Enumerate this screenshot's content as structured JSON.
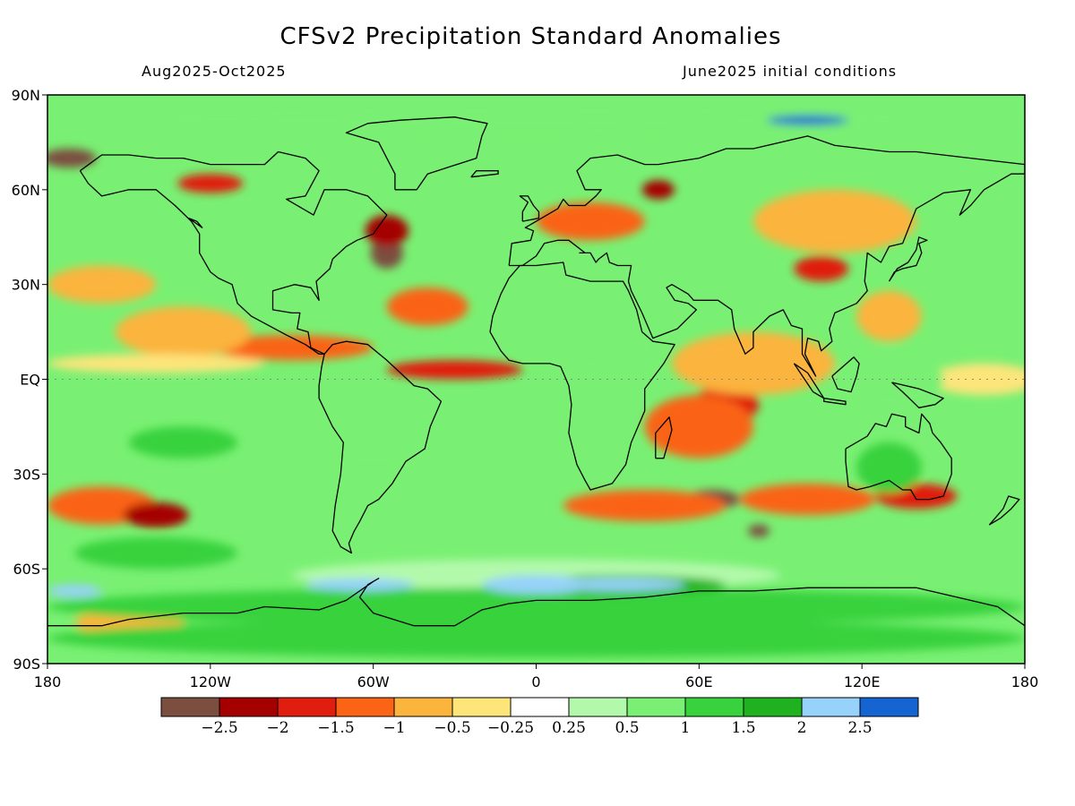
{
  "title": "CFSv2 Precipitation Standard Anomalies",
  "subtitle_left": "Aug2025-Oct2025",
  "subtitle_right": "June2025 initial conditions",
  "map": {
    "projection": "lat-lon",
    "lon_range": [
      -180,
      180
    ],
    "lat_range": [
      -90,
      90
    ],
    "coastlines": true,
    "gridlines": "dotted at EQ"
  },
  "y_ticks": [
    {
      "lat": 90,
      "label": "90N"
    },
    {
      "lat": 60,
      "label": "60N"
    },
    {
      "lat": 30,
      "label": "30N"
    },
    {
      "lat": 0,
      "label": "EQ"
    },
    {
      "lat": -30,
      "label": "30S"
    },
    {
      "lat": -60,
      "label": "60S"
    },
    {
      "lat": -90,
      "label": "90S"
    }
  ],
  "x_ticks": [
    {
      "lon": -180,
      "label": "180"
    },
    {
      "lon": -120,
      "label": "120W"
    },
    {
      "lon": -60,
      "label": "60W"
    },
    {
      "lon": 0,
      "label": "0"
    },
    {
      "lon": 60,
      "label": "60E"
    },
    {
      "lon": 120,
      "label": "120E"
    },
    {
      "lon": 180,
      "label": "180"
    }
  ],
  "colorbar": {
    "colors": [
      "#7b4e40",
      "#a50000",
      "#e01e0f",
      "#fa6414",
      "#fbb43c",
      "#fde57a",
      "#ffffff",
      "#b3f9ab",
      "#79f073",
      "#37d23c",
      "#20b21e",
      "#96d2fa",
      "#1464d2"
    ],
    "labels": [
      "-2.5",
      "-2",
      "-1.5",
      "-1",
      "-0.5",
      "-0.25",
      "0.25",
      "0.5",
      "1",
      "1.5",
      "2",
      "2.5"
    ]
  },
  "anomaly_regions": [
    {
      "lon": -172,
      "lat": 70,
      "rx": 10,
      "ry": 3,
      "level": 0
    },
    {
      "lon": -55,
      "lat": 40,
      "rx": 6,
      "ry": 5,
      "level": 0
    },
    {
      "lon": 65,
      "lat": -38,
      "rx": 10,
      "ry": 3,
      "level": 0
    },
    {
      "lon": 82,
      "lat": -48,
      "rx": 4,
      "ry": 2,
      "level": 0
    },
    {
      "lon": 45,
      "lat": 60,
      "rx": 6,
      "ry": 3,
      "level": 1
    },
    {
      "lon": -55,
      "lat": 47,
      "rx": 8,
      "ry": 5,
      "level": 1
    },
    {
      "lon": -30,
      "lat": 3,
      "rx": 25,
      "ry": 3,
      "level": 2
    },
    {
      "lon": 70,
      "lat": -8,
      "rx": 12,
      "ry": 6,
      "level": 2
    },
    {
      "lon": 105,
      "lat": 35,
      "rx": 10,
      "ry": 4,
      "level": 2
    },
    {
      "lon": 140,
      "lat": -37,
      "rx": 15,
      "ry": 4,
      "level": 2
    },
    {
      "lon": -120,
      "lat": 62,
      "rx": 12,
      "ry": 3,
      "level": 2
    },
    {
      "lon": -90,
      "lat": 10,
      "rx": 30,
      "ry": 4,
      "level": 3
    },
    {
      "lon": -40,
      "lat": 23,
      "rx": 15,
      "ry": 6,
      "level": 3
    },
    {
      "lon": 20,
      "lat": 50,
      "rx": 20,
      "ry": 6,
      "level": 3
    },
    {
      "lon": 60,
      "lat": -15,
      "rx": 20,
      "ry": 10,
      "level": 3
    },
    {
      "lon": 40,
      "lat": -40,
      "rx": 30,
      "ry": 5,
      "level": 3
    },
    {
      "lon": 100,
      "lat": -38,
      "rx": 25,
      "ry": 5,
      "level": 3
    },
    {
      "lon": -160,
      "lat": -40,
      "rx": 20,
      "ry": 6,
      "level": 3
    },
    {
      "lon": -160,
      "lat": 30,
      "rx": 20,
      "ry": 6,
      "level": 4
    },
    {
      "lon": -130,
      "lat": 15,
      "rx": 25,
      "ry": 8,
      "level": 4
    },
    {
      "lon": 80,
      "lat": 5,
      "rx": 30,
      "ry": 10,
      "level": 4
    },
    {
      "lon": 110,
      "lat": 50,
      "rx": 30,
      "ry": 10,
      "level": 4
    },
    {
      "lon": -150,
      "lat": -77,
      "rx": 20,
      "ry": 4,
      "level": 4
    },
    {
      "lon": 130,
      "lat": 20,
      "rx": 12,
      "ry": 8,
      "level": 4
    },
    {
      "lon": -140,
      "lat": 5,
      "rx": 40,
      "ry": 3,
      "level": 5
    },
    {
      "lon": 165,
      "lat": 0,
      "rx": 20,
      "ry": 5,
      "level": 5
    },
    {
      "lon": 0,
      "lat": -62,
      "rx": 90,
      "ry": 5,
      "level": 7
    },
    {
      "lon": -60,
      "lat": -30,
      "rx": 20,
      "ry": 8,
      "level": 8
    },
    {
      "lon": 20,
      "lat": 10,
      "rx": 25,
      "ry": 8,
      "level": 8
    },
    {
      "lon": 130,
      "lat": 0,
      "rx": 20,
      "ry": 10,
      "level": 8
    },
    {
      "lon": 0,
      "lat": 83,
      "rx": 180,
      "ry": 5,
      "level": 8
    },
    {
      "lon": 0,
      "lat": -72,
      "rx": 180,
      "ry": 6,
      "level": 9
    },
    {
      "lon": 0,
      "lat": -82,
      "rx": 180,
      "ry": 6,
      "level": 9
    },
    {
      "lon": -140,
      "lat": -55,
      "rx": 30,
      "ry": 5,
      "level": 9
    },
    {
      "lon": 130,
      "lat": -28,
      "rx": 12,
      "ry": 8,
      "level": 9
    },
    {
      "lon": -130,
      "lat": -20,
      "rx": 20,
      "ry": 5,
      "level": 9
    },
    {
      "lon": 30,
      "lat": -65,
      "rx": 40,
      "ry": 3,
      "level": 10
    },
    {
      "lon": 0,
      "lat": -65,
      "rx": 20,
      "ry": 3,
      "level": 11
    },
    {
      "lon": 30,
      "lat": -65,
      "rx": 25,
      "ry": 2,
      "level": 11
    },
    {
      "lon": 100,
      "lat": 82,
      "rx": 15,
      "ry": 1.5,
      "level": 12
    },
    {
      "lon": -65,
      "lat": -65,
      "rx": 20,
      "ry": 2,
      "level": 11
    },
    {
      "lon": -170,
      "lat": -67,
      "rx": 10,
      "ry": 2,
      "level": 11
    },
    {
      "lon": -140,
      "lat": -43,
      "rx": 12,
      "ry": 4,
      "level": 1
    }
  ],
  "coastlines": [
    [
      [
        -168,
        66
      ],
      [
        -160,
        71
      ],
      [
        -150,
        71
      ],
      [
        -140,
        70
      ],
      [
        -130,
        70
      ],
      [
        -120,
        68
      ],
      [
        -100,
        68
      ],
      [
        -95,
        72
      ],
      [
        -85,
        70
      ],
      [
        -80,
        66
      ],
      [
        -85,
        58
      ],
      [
        -92,
        57
      ],
      [
        -82,
        52
      ],
      [
        -78,
        60
      ],
      [
        -70,
        60
      ],
      [
        -62,
        58
      ],
      [
        -55,
        52
      ],
      [
        -60,
        46
      ],
      [
        -66,
        44
      ],
      [
        -70,
        42
      ],
      [
        -75,
        38
      ],
      [
        -76,
        35
      ],
      [
        -81,
        31
      ],
      [
        -80,
        25
      ],
      [
        -83,
        29
      ],
      [
        -89,
        30
      ],
      [
        -97,
        28
      ],
      [
        -97,
        22
      ],
      [
        -90,
        21
      ],
      [
        -87,
        21
      ],
      [
        -88,
        16
      ],
      [
        -84,
        15
      ],
      [
        -83,
        10
      ],
      [
        -78,
        8
      ],
      [
        -80,
        8
      ],
      [
        -85,
        11
      ],
      [
        -92,
        14
      ],
      [
        -105,
        20
      ],
      [
        -110,
        24
      ],
      [
        -112,
        30
      ],
      [
        -117,
        32
      ],
      [
        -120,
        34
      ],
      [
        -124,
        40
      ],
      [
        -124,
        46
      ],
      [
        -127,
        50
      ],
      [
        -133,
        55
      ],
      [
        -140,
        60
      ],
      [
        -150,
        60
      ],
      [
        -160,
        58
      ],
      [
        -165,
        62
      ],
      [
        -168,
        66
      ]
    ],
    [
      [
        -78,
        8
      ],
      [
        -75,
        11
      ],
      [
        -70,
        12
      ],
      [
        -62,
        11
      ],
      [
        -55,
        6
      ],
      [
        -50,
        2
      ],
      [
        -45,
        -2
      ],
      [
        -40,
        -3
      ],
      [
        -35,
        -7
      ],
      [
        -39,
        -15
      ],
      [
        -41,
        -22
      ],
      [
        -48,
        -26
      ],
      [
        -53,
        -33
      ],
      [
        -58,
        -38
      ],
      [
        -62,
        -40
      ],
      [
        -65,
        -45
      ],
      [
        -67,
        -48
      ],
      [
        -69,
        -52
      ],
      [
        -68,
        -55
      ],
      [
        -72,
        -53
      ],
      [
        -75,
        -48
      ],
      [
        -74,
        -40
      ],
      [
        -72,
        -30
      ],
      [
        -71,
        -20
      ],
      [
        -75,
        -15
      ],
      [
        -80,
        -6
      ],
      [
        -80,
        -2
      ],
      [
        -79,
        4
      ],
      [
        -78,
        8
      ]
    ],
    [
      [
        -17,
        15
      ],
      [
        -16,
        20
      ],
      [
        -13,
        27
      ],
      [
        -10,
        32
      ],
      [
        -6,
        36
      ],
      [
        0,
        36
      ],
      [
        10,
        37
      ],
      [
        11,
        33
      ],
      [
        20,
        31
      ],
      [
        32,
        31
      ],
      [
        34,
        28
      ],
      [
        37,
        22
      ],
      [
        39,
        15
      ],
      [
        43,
        12
      ],
      [
        51,
        11
      ],
      [
        47,
        5
      ],
      [
        40,
        -3
      ],
      [
        40,
        -10
      ],
      [
        35,
        -20
      ],
      [
        33,
        -27
      ],
      [
        28,
        -33
      ],
      [
        20,
        -35
      ],
      [
        18,
        -32
      ],
      [
        15,
        -27
      ],
      [
        12,
        -17
      ],
      [
        13,
        -8
      ],
      [
        12,
        -2
      ],
      [
        9,
        4
      ],
      [
        5,
        5
      ],
      [
        -5,
        5
      ],
      [
        -10,
        6
      ],
      [
        -13,
        9
      ],
      [
        -17,
        15
      ]
    ],
    [
      [
        -10,
        36
      ],
      [
        -9,
        43
      ],
      [
        -2,
        44
      ],
      [
        -1,
        47
      ],
      [
        -4,
        48
      ],
      [
        2,
        51
      ],
      [
        8,
        54
      ],
      [
        10,
        57
      ],
      [
        12,
        55
      ],
      [
        18,
        55
      ],
      [
        22,
        58
      ],
      [
        24,
        60
      ],
      [
        18,
        60
      ],
      [
        15,
        66
      ],
      [
        20,
        70
      ],
      [
        30,
        71
      ],
      [
        40,
        68
      ],
      [
        45,
        68
      ],
      [
        60,
        70
      ],
      [
        70,
        73
      ],
      [
        80,
        73
      ],
      [
        100,
        77
      ],
      [
        110,
        74
      ],
      [
        130,
        72
      ],
      [
        140,
        72
      ],
      [
        160,
        70
      ],
      [
        180,
        68
      ],
      [
        180,
        65
      ],
      [
        175,
        65
      ],
      [
        165,
        60
      ],
      [
        160,
        55
      ],
      [
        156,
        52
      ],
      [
        160,
        60
      ],
      [
        150,
        59
      ],
      [
        140,
        54
      ],
      [
        135,
        43
      ],
      [
        130,
        42
      ],
      [
        127,
        37
      ],
      [
        122,
        40
      ],
      [
        121,
        31
      ],
      [
        122,
        28
      ],
      [
        118,
        24
      ],
      [
        110,
        21
      ],
      [
        108,
        16
      ],
      [
        109,
        12
      ],
      [
        105,
        9
      ],
      [
        104,
        12
      ],
      [
        100,
        13
      ],
      [
        99,
        8
      ],
      [
        103,
        1
      ],
      [
        98,
        8
      ],
      [
        98,
        16
      ],
      [
        94,
        17
      ],
      [
        91,
        22
      ],
      [
        86,
        20
      ],
      [
        80,
        15
      ],
      [
        80,
        10
      ],
      [
        77,
        8
      ],
      [
        73,
        16
      ],
      [
        72,
        22
      ],
      [
        67,
        25
      ],
      [
        58,
        25
      ],
      [
        56,
        27
      ],
      [
        50,
        30
      ],
      [
        48,
        29
      ],
      [
        51,
        25
      ],
      [
        56,
        24
      ],
      [
        59,
        22
      ],
      [
        52,
        16
      ],
      [
        43,
        13
      ],
      [
        39,
        21
      ],
      [
        35,
        28
      ],
      [
        34,
        31
      ],
      [
        35,
        36
      ],
      [
        30,
        36
      ],
      [
        27,
        37
      ],
      [
        26,
        40
      ],
      [
        23,
        38
      ],
      [
        22,
        37
      ],
      [
        20,
        40
      ],
      [
        16,
        40
      ],
      [
        18,
        40
      ],
      [
        12,
        44
      ],
      [
        8,
        44
      ],
      [
        3,
        43
      ],
      [
        0,
        39
      ],
      [
        -5,
        36
      ],
      [
        -10,
        36
      ]
    ],
    [
      [
        114,
        -22
      ],
      [
        114,
        -26
      ],
      [
        115,
        -34
      ],
      [
        118,
        -35
      ],
      [
        123,
        -34
      ],
      [
        130,
        -32
      ],
      [
        135,
        -35
      ],
      [
        138,
        -35
      ],
      [
        140,
        -38
      ],
      [
        145,
        -38
      ],
      [
        150,
        -37
      ],
      [
        153,
        -30
      ],
      [
        153,
        -25
      ],
      [
        149,
        -20
      ],
      [
        146,
        -17
      ],
      [
        145,
        -14
      ],
      [
        142,
        -11
      ],
      [
        141,
        -17
      ],
      [
        136,
        -15
      ],
      [
        136,
        -12
      ],
      [
        131,
        -11
      ],
      [
        129,
        -15
      ],
      [
        125,
        -14
      ],
      [
        122,
        -18
      ],
      [
        114,
        -22
      ]
    ],
    [
      [
        -180,
        -78
      ],
      [
        -160,
        -78
      ],
      [
        -150,
        -76
      ],
      [
        -130,
        -74
      ],
      [
        -110,
        -74
      ],
      [
        -100,
        -72
      ],
      [
        -80,
        -73
      ],
      [
        -70,
        -70
      ],
      [
        -60,
        -64
      ],
      [
        -58,
        -63
      ],
      [
        -62,
        -65
      ],
      [
        -65,
        -69
      ],
      [
        -60,
        -74
      ],
      [
        -45,
        -78
      ],
      [
        -30,
        -78
      ],
      [
        -20,
        -73
      ],
      [
        -10,
        -71
      ],
      [
        0,
        -70
      ],
      [
        20,
        -70
      ],
      [
        40,
        -69
      ],
      [
        60,
        -67
      ],
      [
        80,
        -67
      ],
      [
        100,
        -66
      ],
      [
        120,
        -66
      ],
      [
        140,
        -66
      ],
      [
        160,
        -70
      ],
      [
        170,
        -72
      ],
      [
        180,
        -78
      ]
    ],
    [
      [
        -52,
        60
      ],
      [
        -44,
        60
      ],
      [
        -40,
        65
      ],
      [
        -22,
        70
      ],
      [
        -20,
        77
      ],
      [
        -18,
        81
      ],
      [
        -30,
        83
      ],
      [
        -50,
        82
      ],
      [
        -62,
        81
      ],
      [
        -70,
        78
      ],
      [
        -58,
        75
      ],
      [
        -55,
        70
      ],
      [
        -52,
        65
      ],
      [
        -52,
        60
      ]
    ],
    [
      [
        -5,
        50
      ],
      [
        -5,
        53
      ],
      [
        -3,
        56
      ],
      [
        -6,
        58
      ],
      [
        -3,
        58
      ],
      [
        -1,
        55
      ],
      [
        1,
        53
      ],
      [
        1,
        51
      ],
      [
        -5,
        50
      ]
    ],
    [
      [
        130,
        31
      ],
      [
        132,
        34
      ],
      [
        135,
        35
      ],
      [
        140,
        36
      ],
      [
        142,
        40
      ],
      [
        141,
        43
      ],
      [
        144,
        44
      ],
      [
        141,
        45
      ],
      [
        140,
        41
      ],
      [
        137,
        37
      ],
      [
        133,
        35
      ],
      [
        130,
        31
      ]
    ],
    [
      [
        44,
        -25
      ],
      [
        47,
        -25
      ],
      [
        50,
        -16
      ],
      [
        49,
        -12
      ],
      [
        44,
        -17
      ],
      [
        44,
        -25
      ]
    ],
    [
      [
        172,
        -41
      ],
      [
        174,
        -37
      ],
      [
        178,
        -38
      ],
      [
        175,
        -41
      ],
      [
        171,
        -44
      ],
      [
        167,
        -46
      ],
      [
        172,
        -41
      ]
    ],
    [
      [
        95,
        5
      ],
      [
        100,
        2
      ],
      [
        106,
        -6
      ],
      [
        102,
        -4
      ],
      [
        95,
        5
      ]
    ],
    [
      [
        106,
        -6
      ],
      [
        114,
        -7
      ],
      [
        114,
        -8
      ],
      [
        106,
        -7
      ],
      [
        106,
        -6
      ]
    ],
    [
      [
        109,
        1
      ],
      [
        117,
        7
      ],
      [
        119,
        5
      ],
      [
        118,
        1
      ],
      [
        116,
        -4
      ],
      [
        111,
        -3
      ],
      [
        109,
        1
      ]
    ],
    [
      [
        131,
        -1
      ],
      [
        141,
        -3
      ],
      [
        150,
        -6
      ],
      [
        147,
        -8
      ],
      [
        141,
        -9
      ],
      [
        135,
        -4
      ],
      [
        131,
        -1
      ]
    ],
    [
      [
        -24,
        64
      ],
      [
        -14,
        65
      ],
      [
        -14,
        66
      ],
      [
        -22,
        66
      ],
      [
        -24,
        64
      ]
    ],
    [
      [
        -125,
        50
      ],
      [
        -123,
        48
      ],
      [
        -128,
        51
      ],
      [
        -125,
        50
      ]
    ]
  ]
}
